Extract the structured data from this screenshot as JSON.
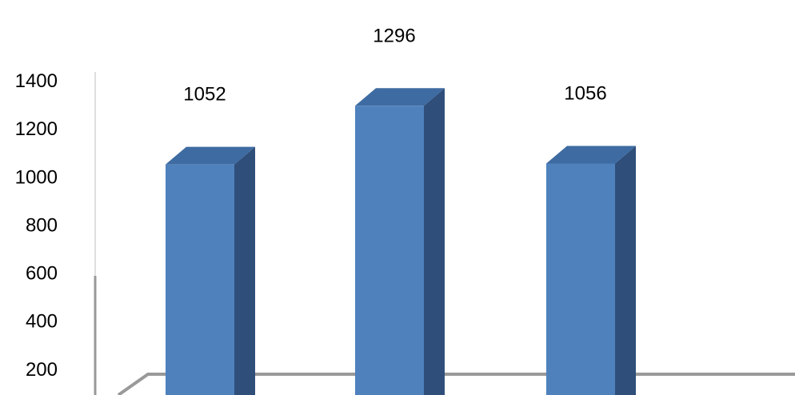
{
  "chart_data": {
    "type": "bar",
    "style": "3d-column",
    "categories": [
      "",
      "",
      ""
    ],
    "series": [
      {
        "values": [
          1052,
          1296,
          1056
        ]
      }
    ],
    "data_labels": [
      "1052",
      "1296",
      "1056"
    ],
    "y_ticks": [
      200,
      400,
      600,
      800,
      1000,
      1200,
      1400
    ],
    "ylim": [
      0,
      1400
    ],
    "grid": false,
    "legend": "none",
    "colors": {
      "bar_front": "#4f81bd",
      "bar_side": "#2f4f7a",
      "bar_top": "#3e6ba1",
      "floor": "#999999",
      "axis": "#bfbfbf"
    }
  }
}
